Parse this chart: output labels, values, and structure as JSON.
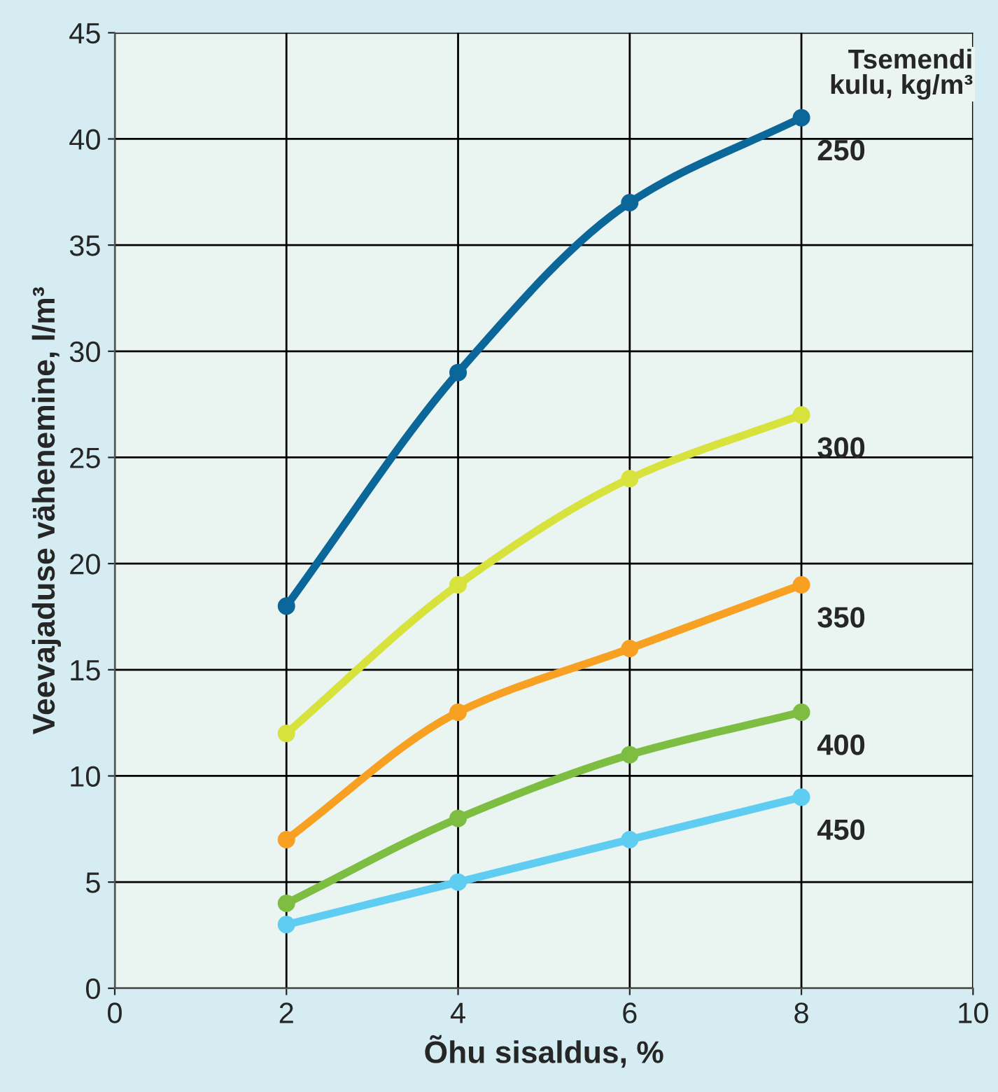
{
  "chart_data": {
    "type": "line",
    "xlabel": "Õhu sisaldus, %",
    "ylabel": "Veevajaduse vähenemine, l/m³",
    "legend_title": "Tsemendi\nkulu, kg/m³",
    "x": [
      2,
      4,
      6,
      8
    ],
    "xlim": [
      0,
      10
    ],
    "xticks": [
      0,
      2,
      4,
      6,
      8,
      10
    ],
    "ylim": [
      0,
      45
    ],
    "yticks": [
      0,
      5,
      10,
      15,
      20,
      25,
      30,
      35,
      40,
      45
    ],
    "grid": true,
    "marker": "circle",
    "line_style": "solid",
    "series": [
      {
        "name": "250",
        "color": "#0b6699",
        "values": [
          18,
          29,
          37,
          41
        ]
      },
      {
        "name": "300",
        "color": "#d8e23c",
        "values": [
          12,
          19,
          24,
          27
        ]
      },
      {
        "name": "350",
        "color": "#f7a021",
        "values": [
          7,
          13,
          16,
          19
        ]
      },
      {
        "name": "400",
        "color": "#7dbd42",
        "values": [
          4,
          8,
          11,
          13
        ]
      },
      {
        "name": "450",
        "color": "#5fcdf2",
        "values": [
          3,
          5,
          7,
          9
        ]
      }
    ]
  }
}
